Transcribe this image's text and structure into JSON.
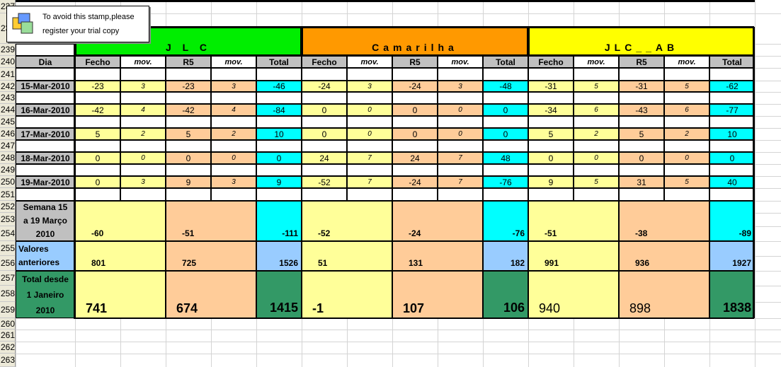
{
  "stamp": {
    "line1": "To avoid this stamp,please",
    "line2": "register your trial copy"
  },
  "row_numbers": [
    "237",
    "238",
    "239",
    "240",
    "241",
    "242",
    "243",
    "244",
    "245",
    "246",
    "247",
    "248",
    "249",
    "250",
    "251",
    "252",
    "253",
    "254",
    "255",
    "256",
    "257",
    "258",
    "259",
    "260",
    "261",
    "262",
    "263"
  ],
  "groups": [
    {
      "title": "J L C",
      "color": "#00ee00"
    },
    {
      "title": "Camarilha",
      "color": "#ff9900"
    },
    {
      "title": "JLC__AB",
      "color": "#ffff00"
    }
  ],
  "col_headers": {
    "dia": "Dia",
    "fecho": "Fecho",
    "mov": "mov.",
    "r5": "R5",
    "total": "Total"
  },
  "days": [
    {
      "date": "15-Mar-2010",
      "vals": [
        [
          "-23",
          "3",
          "-23",
          "3",
          "-46"
        ],
        [
          "-24",
          "3",
          "-24",
          "3",
          "-48"
        ],
        [
          "-31",
          "5",
          "-31",
          "5",
          "-62"
        ]
      ]
    },
    {
      "date": "16-Mar-2010",
      "vals": [
        [
          "-42",
          "4",
          "-42",
          "4",
          "-84"
        ],
        [
          "0",
          "0",
          "0",
          "0",
          "0"
        ],
        [
          "-34",
          "6",
          "-43",
          "6",
          "-77"
        ]
      ]
    },
    {
      "date": "17-Mar-2010",
      "vals": [
        [
          "5",
          "2",
          "5",
          "2",
          "10"
        ],
        [
          "0",
          "0",
          "0",
          "0",
          "0"
        ],
        [
          "5",
          "2",
          "5",
          "2",
          "10"
        ]
      ]
    },
    {
      "date": "18-Mar-2010",
      "vals": [
        [
          "0",
          "0",
          "0",
          "0",
          "0"
        ],
        [
          "24",
          "7",
          "24",
          "7",
          "48"
        ],
        [
          "0",
          "0",
          "0",
          "0",
          "0"
        ]
      ]
    },
    {
      "date": "19-Mar-2010",
      "vals": [
        [
          "0",
          "3",
          "9",
          "3",
          "9"
        ],
        [
          "-52",
          "7",
          "-24",
          "7",
          "-76"
        ],
        [
          "9",
          "5",
          "31",
          "5",
          "40"
        ]
      ]
    }
  ],
  "semana": {
    "label1": "Semana 15",
    "label2": "a 19 Março",
    "label3": "2010",
    "vals": [
      [
        "-60",
        "-51",
        "-111"
      ],
      [
        "-52",
        "-24",
        "-76"
      ],
      [
        "-51",
        "-38",
        "-89"
      ]
    ]
  },
  "anteriores": {
    "label1": "Valores",
    "label2": "anteriores",
    "vals": [
      [
        "801",
        "725",
        "1526"
      ],
      [
        "51",
        "131",
        "182"
      ],
      [
        "991",
        "936",
        "1927"
      ]
    ]
  },
  "desde": {
    "label1": "Total desde",
    "label2": "1 Janeiro",
    "label3": "2010",
    "vals": [
      [
        "741",
        "674",
        "1415"
      ],
      [
        "-1",
        "107",
        "106"
      ],
      [
        "940",
        "898",
        "1838"
      ]
    ]
  },
  "colors": {
    "fecho": "#ffff99",
    "r5": "#ffcc99",
    "total": "#00ffff",
    "anteriores_total": "#99ccff",
    "desde_total": "#339966",
    "anteriores_label": "#99ccff",
    "desde_label": "#339966",
    "grid": "#d4d4d4"
  }
}
